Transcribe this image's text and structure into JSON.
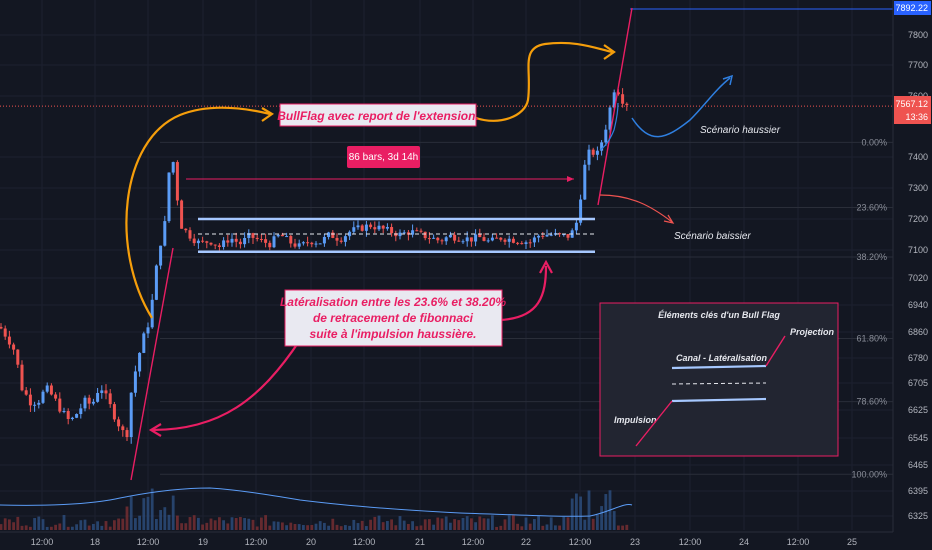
{
  "chart_data": {
    "type": "candlestick",
    "y_range": [
      6280,
      7920
    ],
    "y_ticks": [
      7800,
      7700,
      7600,
      7400,
      7300,
      7200,
      7100,
      7020,
      6940,
      6860,
      6780,
      6705,
      6625,
      6545,
      6465,
      6395,
      6325
    ],
    "x_ticks": [
      "12:00",
      "18",
      "12:00",
      "19",
      "12:00",
      "20",
      "12:00",
      "21",
      "12:00",
      "22",
      "12:00",
      "23",
      "12:00",
      "24",
      "12:00",
      "25"
    ],
    "price_labels": {
      "top": "7892.22",
      "current": "7567.12",
      "countdown": "13:36"
    },
    "fib_levels": [
      {
        "label": "0.00%",
        "value": 7448
      },
      {
        "label": "23.60%",
        "value": 7237
      },
      {
        "label": "38.20%",
        "value": 7080
      },
      {
        "label": "61.80%",
        "value": 6840
      },
      {
        "label": "78.60%",
        "value": 6650
      },
      {
        "label": "100.00%",
        "value": 6440
      }
    ],
    "channel": {
      "upper": 7200,
      "mid": 7150,
      "lower": 7095
    },
    "range_box_label": "86 bars, 3d 14h",
    "annotations": {
      "bullflag": "BullFlag avec report de l'extension.",
      "lateral_1": "Latéralisation entre les 23.6% et 38.20%",
      "lateral_2": "de retracement de fibonnaci",
      "lateral_3": "suite à l'impulsion haussière.",
      "scenario_up": "Scénario haussier",
      "scenario_down": "Scénario baissier"
    },
    "key_box": {
      "title": "Éléments clés d'un Bull Flag",
      "projection": "Projection",
      "channel": "Canal - Latéralisation",
      "impulse": "Impulsion"
    },
    "colors": {
      "up": "#5b9cf6",
      "down": "#ef5350",
      "accent": "#e91e63",
      "orange": "#f59e0b",
      "channel": "#a6c8ff"
    }
  }
}
